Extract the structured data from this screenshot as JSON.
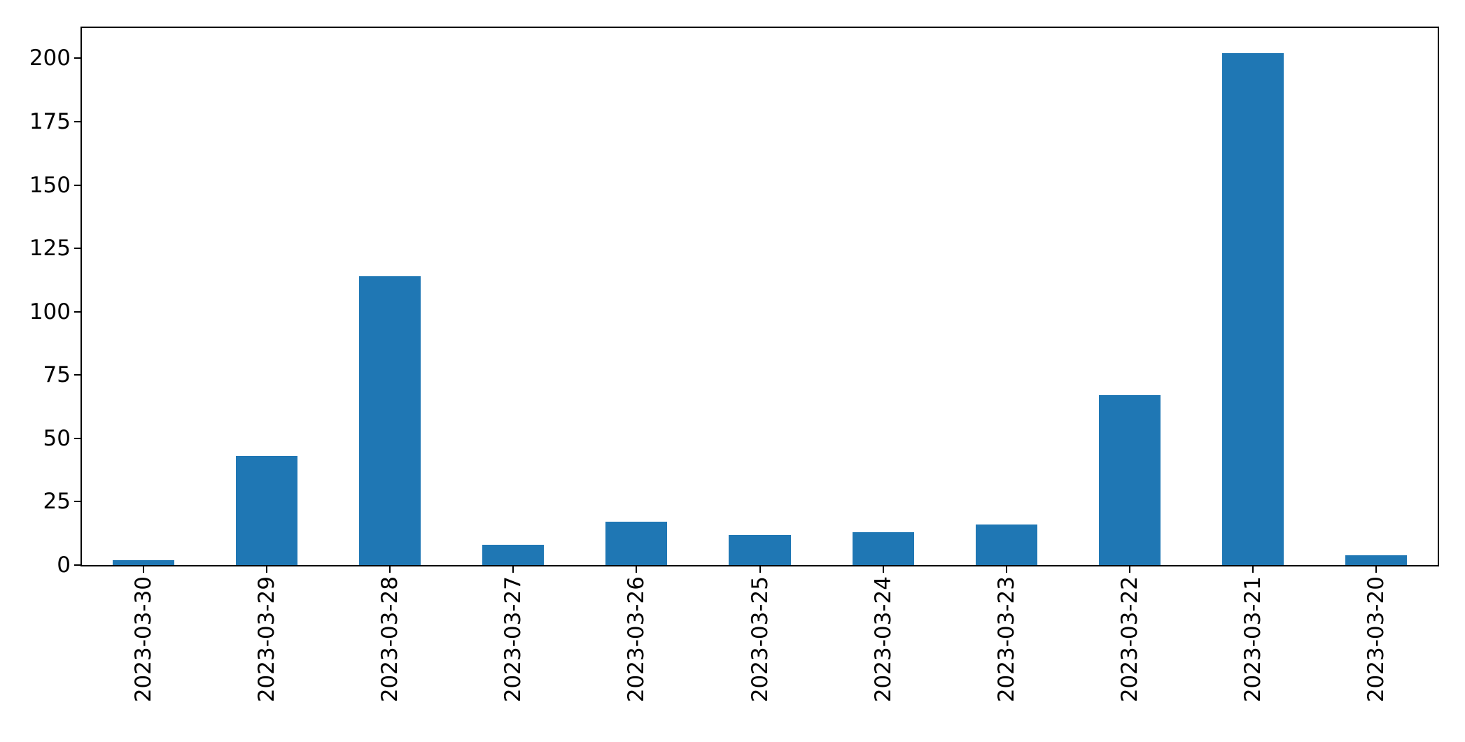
{
  "chart_data": {
    "type": "bar",
    "title": "",
    "xlabel": "",
    "ylabel": "",
    "categories": [
      "2023-03-30",
      "2023-03-29",
      "2023-03-28",
      "2023-03-27",
      "2023-03-26",
      "2023-03-25",
      "2023-03-24",
      "2023-03-23",
      "2023-03-22",
      "2023-03-21",
      "2023-03-20"
    ],
    "values": [
      2,
      43,
      114,
      8,
      17,
      12,
      13,
      16,
      67,
      202,
      4
    ],
    "ylim": [
      0,
      212
    ],
    "yticks": [
      0,
      25,
      50,
      75,
      100,
      125,
      150,
      175,
      200
    ],
    "bar_color": "#1f77b4",
    "axis_color": "#000000",
    "bar_width_fraction": 0.5,
    "x_tick_rotation_deg": 90,
    "grid": false,
    "legend": "none"
  }
}
